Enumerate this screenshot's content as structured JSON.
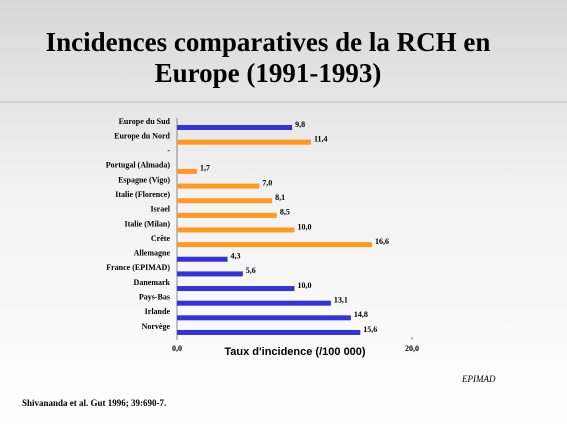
{
  "chart_data": {
    "type": "hbar",
    "title_lines": [
      "Incidences comparatives de la RCH en",
      "Europe (1991-1993)"
    ],
    "x_label": "Taux d'incidence (/100 000)",
    "categories": [
      "Europe du Sud",
      "Europe du Nord",
      "-",
      "Portugal (Almada)",
      "Espagne (Vigo)",
      "Italie (Florence)",
      "Israel",
      "Italie (Milan)",
      "Crête",
      "Allemagne",
      "France (EPIMAD)",
      "Danemark",
      "Pays-Bas",
      "Irlande",
      "Norvège"
    ],
    "values": [
      9.8,
      11.4,
      null,
      1.7,
      7.0,
      8.1,
      8.5,
      10.0,
      16.6,
      4.3,
      5.6,
      10.0,
      13.1,
      14.8,
      15.6
    ],
    "value_labels": [
      "9,8",
      "11,4",
      null,
      "1,7",
      "7,0",
      "8,1",
      "8,5",
      "10,0",
      "16,6",
      "4,3",
      "5,6",
      "10,0",
      "13,1",
      "14,8",
      "15,6"
    ],
    "colors": [
      "#3333dd",
      "#ff9922",
      null,
      "#ff9922",
      "#ff9922",
      "#ff9922",
      "#ff9922",
      "#ff9922",
      "#ff9922",
      "#3333dd",
      "#3333dd",
      "#3333dd",
      "#3333dd",
      "#3333dd",
      "#3333dd"
    ],
    "xlim": [
      0,
      20
    ],
    "xticks": [
      {
        "value": 0,
        "label": "0,0"
      },
      {
        "value": 20,
        "label": "20,0"
      }
    ],
    "source": "Shivananda et al. Gut 1996; 39:690-7.",
    "note": "EPIMAD"
  }
}
